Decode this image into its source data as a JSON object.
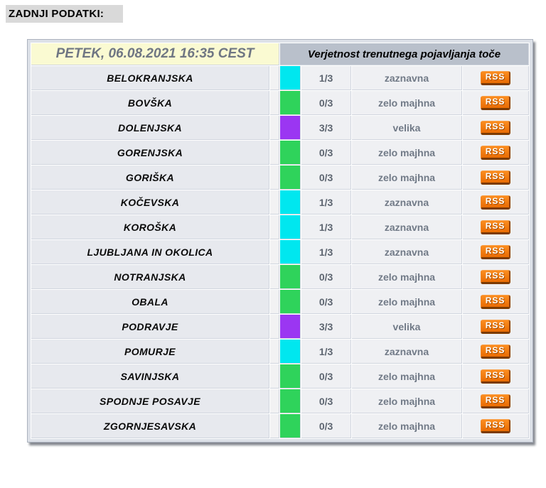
{
  "page": {
    "title": "ZADNJI PODATKI:"
  },
  "table": {
    "header": {
      "datetime": "PETEK, 06.08.2021 16:35 CEST",
      "title": "Verjetnost trenutnega pojavljanja toče"
    },
    "rss_label": "RSS",
    "rows": [
      {
        "region": "BELOKRANJSKA",
        "color": "#00e7ef",
        "fraction": "1/3",
        "probability": "zaznavna"
      },
      {
        "region": "BOVŠKA",
        "color": "#2fd35b",
        "fraction": "0/3",
        "probability": "zelo majhna"
      },
      {
        "region": "DOLENJSKA",
        "color": "#9b36f2",
        "fraction": "3/3",
        "probability": "velika"
      },
      {
        "region": "GORENJSKA",
        "color": "#2fd35b",
        "fraction": "0/3",
        "probability": "zelo majhna"
      },
      {
        "region": "GORIŠKA",
        "color": "#2fd35b",
        "fraction": "0/3",
        "probability": "zelo majhna"
      },
      {
        "region": "KOČEVSKA",
        "color": "#00e7ef",
        "fraction": "1/3",
        "probability": "zaznavna"
      },
      {
        "region": "KOROŠKA",
        "color": "#00e7ef",
        "fraction": "1/3",
        "probability": "zaznavna"
      },
      {
        "region": "LJUBLJANA IN OKOLICA",
        "color": "#00e7ef",
        "fraction": "1/3",
        "probability": "zaznavna"
      },
      {
        "region": "NOTRANJSKA",
        "color": "#2fd35b",
        "fraction": "0/3",
        "probability": "zelo majhna"
      },
      {
        "region": "OBALA",
        "color": "#2fd35b",
        "fraction": "0/3",
        "probability": "zelo majhna"
      },
      {
        "region": "PODRAVJE",
        "color": "#9b36f2",
        "fraction": "3/3",
        "probability": "velika"
      },
      {
        "region": "POMURJE",
        "color": "#00e7ef",
        "fraction": "1/3",
        "probability": "zaznavna"
      },
      {
        "region": "SAVINJSKA",
        "color": "#2fd35b",
        "fraction": "0/3",
        "probability": "zelo majhna"
      },
      {
        "region": "SPODNJE POSAVJE",
        "color": "#2fd35b",
        "fraction": "0/3",
        "probability": "zelo majhna"
      },
      {
        "region": "ZGORNJESAVSKA",
        "color": "#2fd35b",
        "fraction": "0/3",
        "probability": "zelo majhna"
      }
    ]
  },
  "colors": {
    "swatch_cyan": "#00e7ef",
    "swatch_green": "#2fd35b",
    "swatch_purple": "#9b36f2",
    "rss_orange": "#ee7008",
    "header_yellow": "#fafad2",
    "header_gray_blue": "#b9c0cb"
  }
}
